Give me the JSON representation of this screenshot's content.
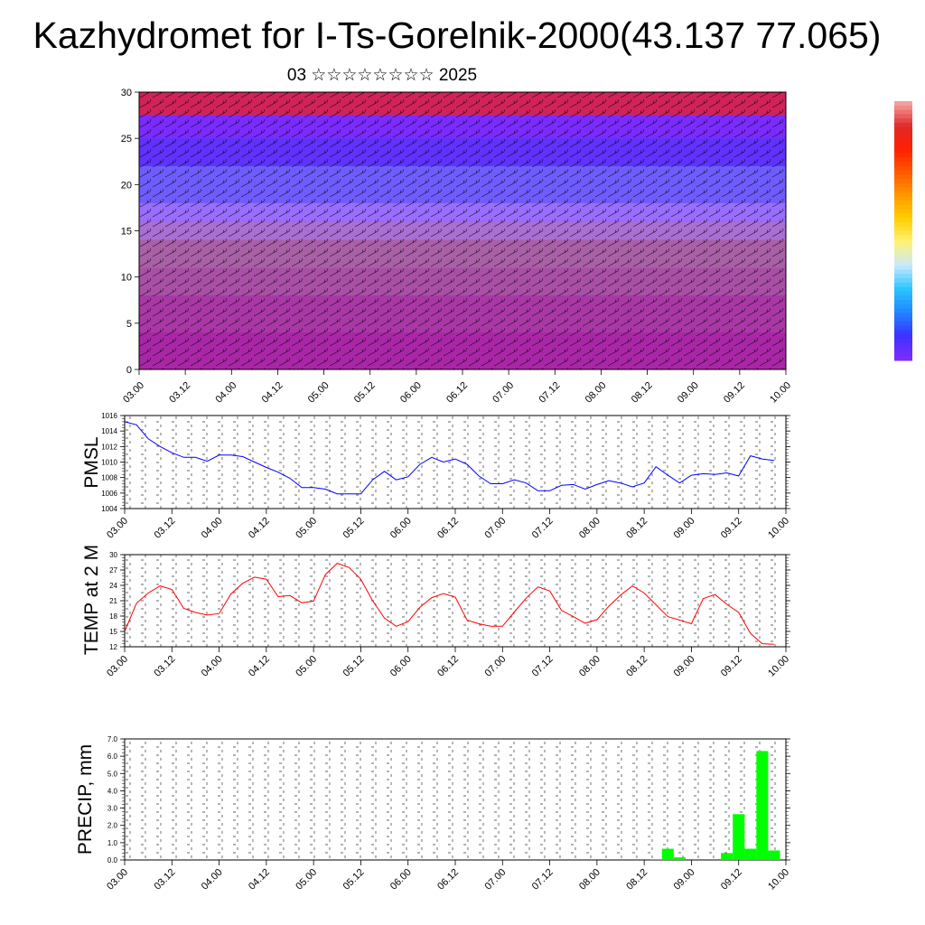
{
  "header": {
    "title": "Kazhydromet for I-Ts-Gorelnik-2000(43.137 77.065)",
    "subtitle": "03 ☆☆☆☆☆☆☆☆ 2025"
  },
  "colors": {
    "pmsl_line": "#0000ff",
    "temp_line": "#ff0000",
    "precip_bar": "#00ff00",
    "colorbar": [
      "#7b2cff",
      "#3a33ff",
      "#1f88ff",
      "#2cc6ff",
      "#c8e8ff",
      "#fff27a",
      "#ffd000",
      "#ff9a00",
      "#ff5a00",
      "#ff2000",
      "#e02828",
      "#f5a0a0"
    ]
  },
  "x_ticks": [
    "03.00",
    "03.12",
    "04.00",
    "04.12",
    "05.00",
    "05.12",
    "06.00",
    "06.12",
    "07.00",
    "07.12",
    "08.00",
    "08.12",
    "09.00",
    "09.12",
    "10.00"
  ],
  "chart_data": [
    {
      "type": "heatmap",
      "name": "cross-section",
      "y_ticks": [
        "0",
        "5",
        "10",
        "15",
        "20",
        "25",
        "30"
      ],
      "ylim": [
        0,
        30
      ],
      "xlim": [
        0,
        168
      ],
      "bands": [
        {
          "y_range": [
            25,
            30
          ],
          "color": "#7b2cff"
        },
        {
          "y_range": [
            22,
            25
          ],
          "color": "#2f3bff"
        },
        {
          "y_range": [
            18,
            22
          ],
          "color": "#58b8ff"
        },
        {
          "y_range": [
            16,
            18
          ],
          "color": "#cfe9ff"
        },
        {
          "y_range": [
            14,
            16
          ],
          "color": "#ffee80"
        },
        {
          "y_range": [
            11,
            14
          ],
          "color": "#ffc400"
        },
        {
          "y_range": [
            8,
            11
          ],
          "color": "#ff9600"
        },
        {
          "y_range": [
            4,
            8
          ],
          "color": "#ff5000"
        },
        {
          "y_range": [
            0,
            4
          ],
          "color": "#ff2000"
        }
      ]
    },
    {
      "type": "line",
      "name": "pmsl",
      "ylabel": "PMSL",
      "y_ticks": [
        "1016",
        "1014",
        "1012",
        "1010",
        "1008",
        "1006",
        "1004"
      ],
      "ylim": [
        1004,
        1016
      ],
      "xlim": [
        0,
        168
      ],
      "x": [
        0,
        3,
        6,
        9,
        12,
        15,
        18,
        21,
        24,
        27,
        30,
        33,
        36,
        39,
        42,
        45,
        48,
        51,
        54,
        57,
        60,
        63,
        66,
        69,
        72,
        75,
        78,
        81,
        84,
        87,
        90,
        93,
        96,
        99,
        102,
        105,
        108,
        111,
        114,
        117,
        120,
        123,
        126,
        129,
        132,
        135,
        138,
        141,
        144,
        147,
        150,
        153,
        156,
        159,
        162,
        165
      ],
      "values": [
        1015.2,
        1014.8,
        1013.0,
        1012.0,
        1011.2,
        1010.6,
        1010.6,
        1010.1,
        1010.9,
        1010.9,
        1010.7,
        1010.0,
        1009.3,
        1008.7,
        1007.9,
        1006.7,
        1006.7,
        1006.5,
        1005.9,
        1005.9,
        1005.9,
        1007.7,
        1008.8,
        1007.7,
        1008.1,
        1009.7,
        1010.6,
        1010.0,
        1010.4,
        1009.7,
        1008.2,
        1007.2,
        1007.2,
        1007.7,
        1007.3,
        1006.3,
        1006.3,
        1007.0,
        1007.1,
        1006.5,
        1007.1,
        1007.6,
        1007.3,
        1006.8,
        1007.3,
        1009.4,
        1008.3,
        1007.3,
        1008.3,
        1008.5,
        1008.4,
        1008.6,
        1008.2,
        1010.8,
        1010.4,
        1010.2
      ]
    },
    {
      "type": "line",
      "name": "temp",
      "ylabel": "TEMP at 2 M",
      "y_ticks": [
        "30",
        "27",
        "24",
        "21",
        "18",
        "15",
        "12"
      ],
      "ylim": [
        12,
        30
      ],
      "xlim": [
        0,
        168
      ],
      "x": [
        0,
        3,
        6,
        9,
        12,
        15,
        18,
        21,
        24,
        27,
        30,
        33,
        36,
        39,
        42,
        45,
        48,
        51,
        54,
        57,
        60,
        63,
        66,
        69,
        72,
        75,
        78,
        81,
        84,
        87,
        90,
        93,
        96,
        99,
        102,
        105,
        108,
        111,
        114,
        117,
        120,
        123,
        126,
        129,
        132,
        135,
        138,
        141,
        144,
        147,
        150,
        153,
        156,
        159,
        162,
        165
      ],
      "values": [
        15.0,
        20.5,
        22.5,
        23.9,
        23.2,
        19.5,
        18.7,
        18.2,
        18.5,
        22.3,
        24.4,
        25.6,
        25.2,
        21.8,
        22.0,
        20.6,
        20.9,
        26.1,
        28.3,
        27.5,
        25.2,
        21.0,
        17.6,
        16.0,
        16.9,
        19.7,
        21.6,
        22.4,
        21.7,
        17.2,
        16.5,
        16.0,
        16.0,
        18.8,
        21.5,
        23.7,
        22.9,
        19.1,
        17.9,
        16.6,
        17.3,
        19.9,
        22.1,
        23.9,
        22.5,
        20.2,
        17.9,
        17.2,
        16.5,
        21.4,
        22.2,
        20.3,
        18.7,
        14.6,
        12.6,
        12.5
      ]
    },
    {
      "type": "bar",
      "name": "precip",
      "ylabel": "PRECIP, mm",
      "y_ticks": [
        "7.0",
        "6.0",
        "5.0",
        "4.0",
        "3.0",
        "2.0",
        "1.0",
        "0.0"
      ],
      "ylim": [
        0,
        7
      ],
      "xlim": [
        0,
        168
      ],
      "bars": [
        {
          "x": 135,
          "value": 0.05
        },
        {
          "x": 138,
          "value": 0.65
        },
        {
          "x": 141,
          "value": 0.15
        },
        {
          "x": 153,
          "value": 0.4
        },
        {
          "x": 156,
          "value": 2.65
        },
        {
          "x": 159,
          "value": 0.65
        },
        {
          "x": 162,
          "value": 6.3
        },
        {
          "x": 165,
          "value": 0.55
        }
      ]
    }
  ]
}
